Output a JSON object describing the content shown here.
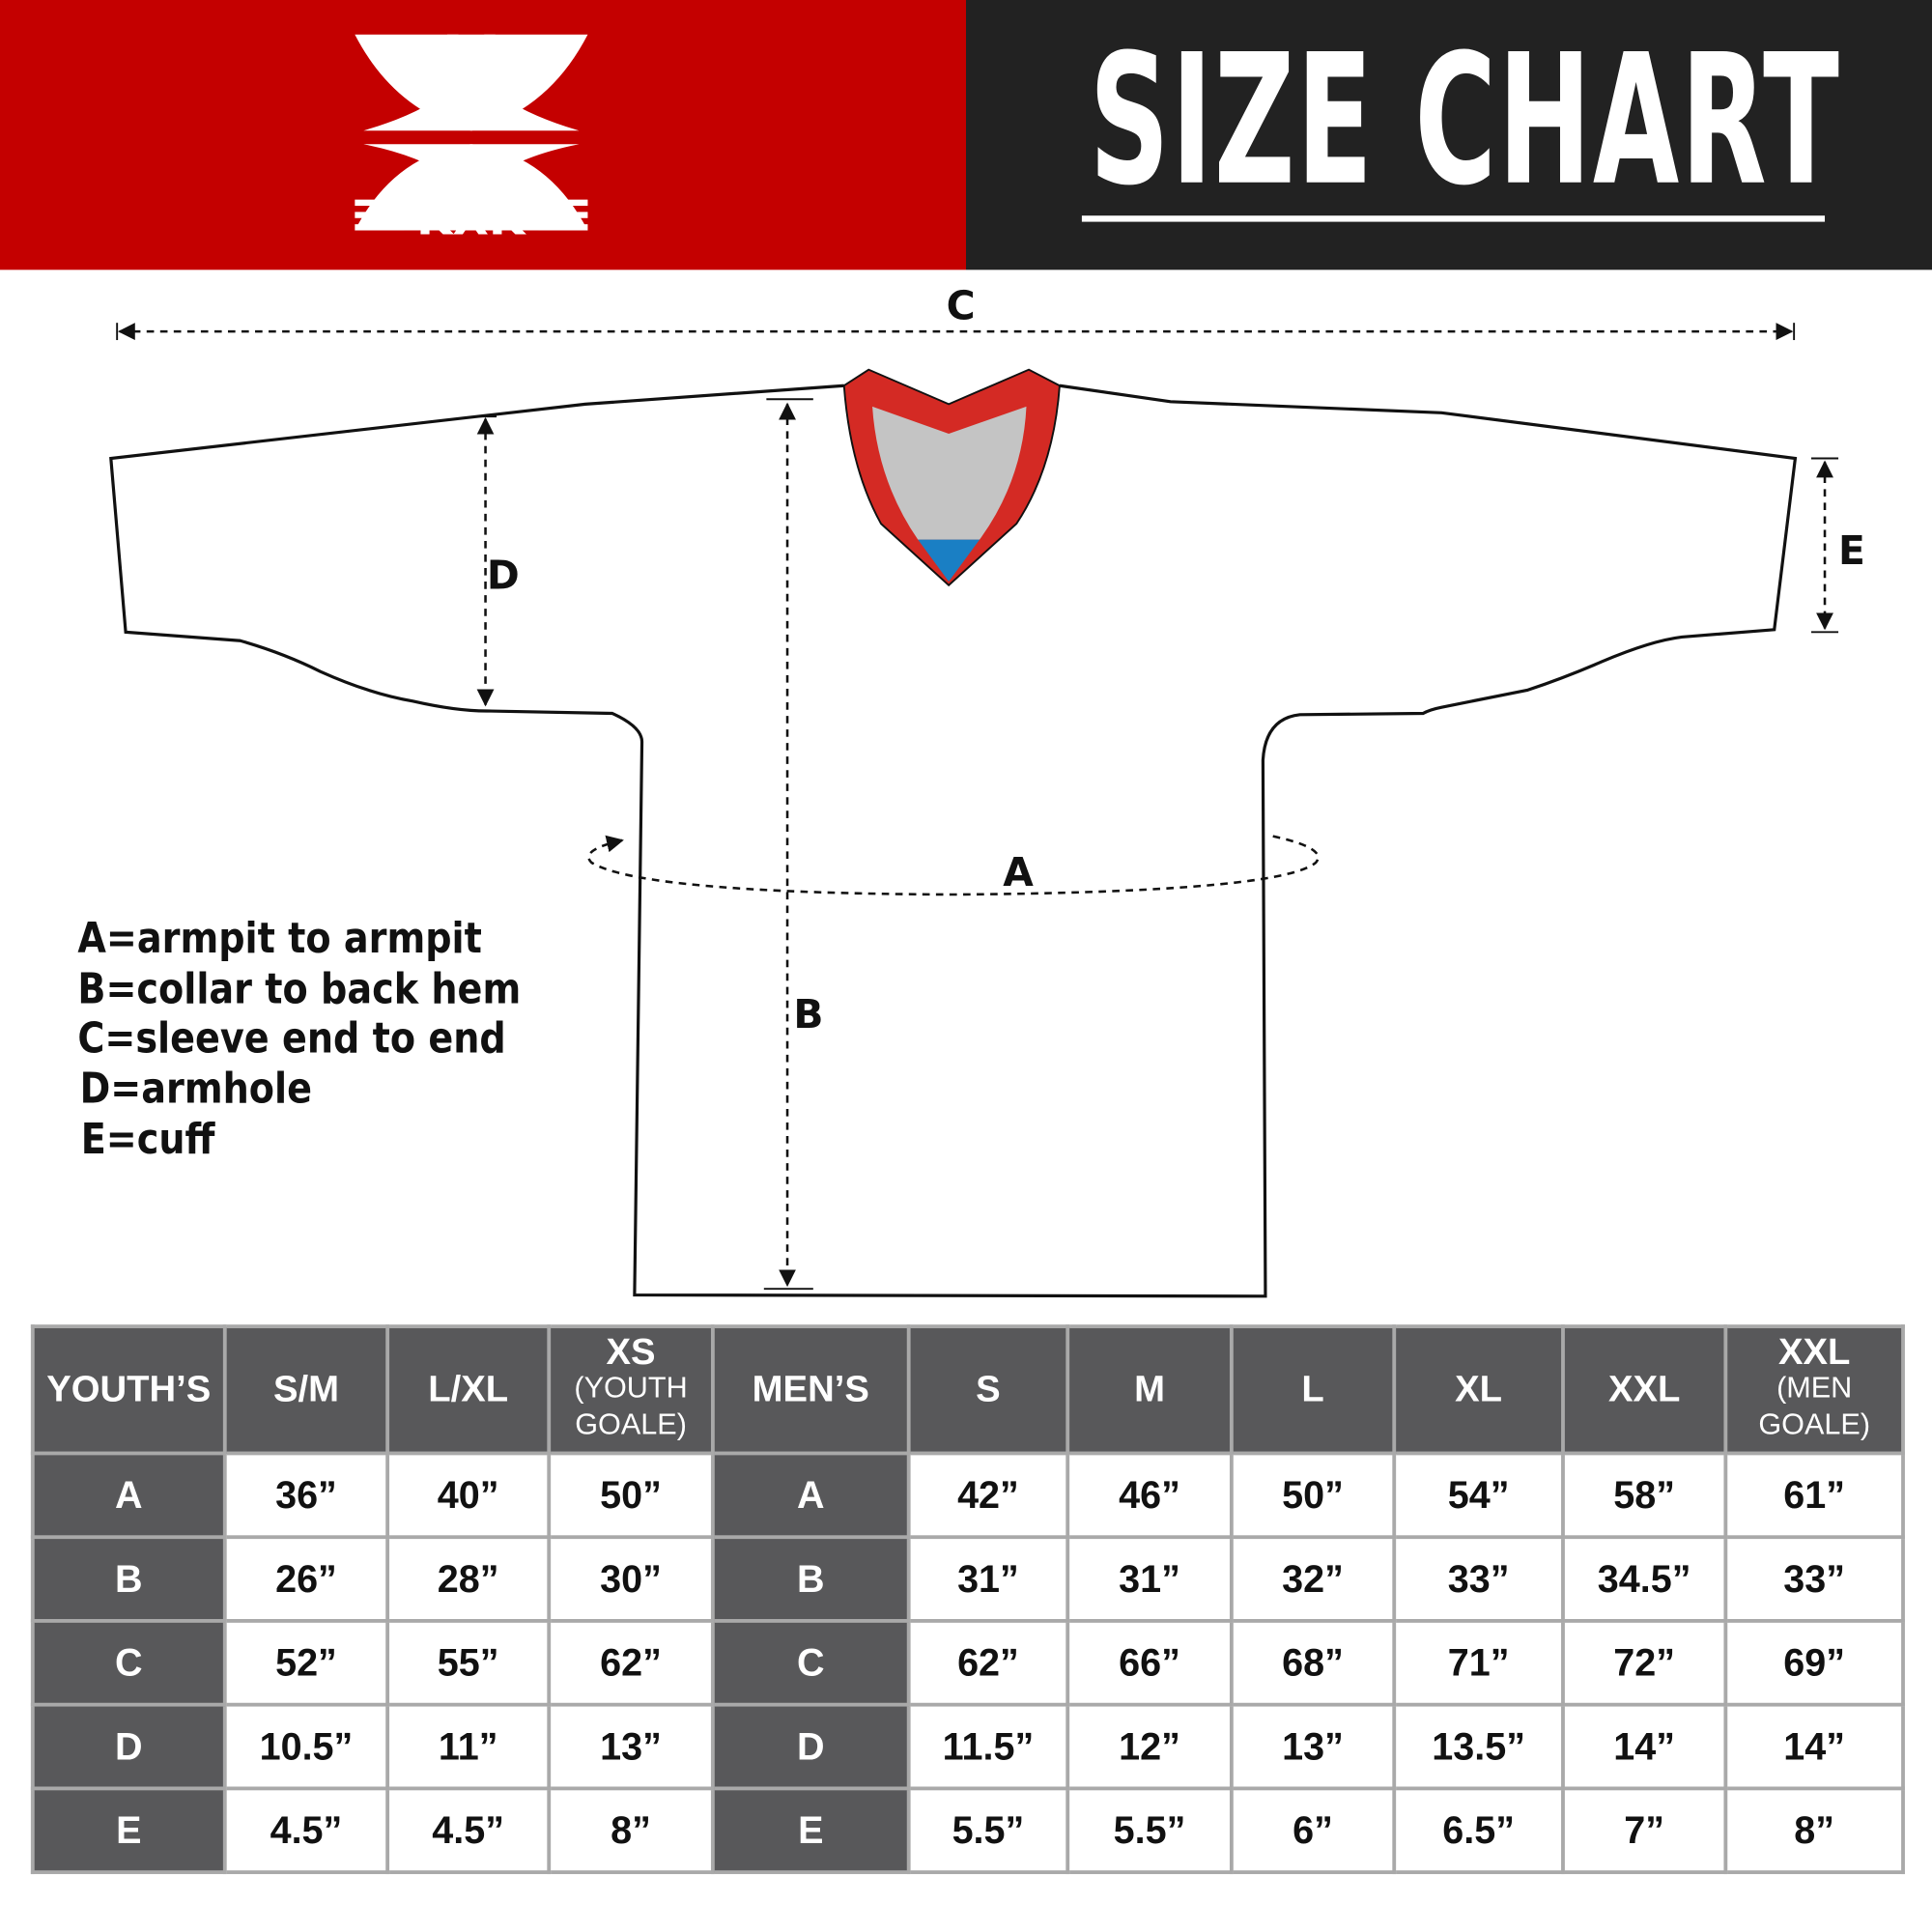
{
  "header": {
    "title": "SIZE CHART",
    "logo_text": "KXK",
    "brand_color": "#c40000",
    "dark_color": "#222222"
  },
  "diagram": {
    "labels": {
      "A": "A",
      "B": "B",
      "C": "C",
      "D": "D",
      "E": "E"
    },
    "collar_colors": {
      "trim": "#d42a24",
      "inner": "#c4c4c4",
      "tag": "#1a7fc4"
    }
  },
  "legend": [
    "A=armpit to armpit",
    "B=collar to back hem",
    "C=sleeve end to end",
    "D=armhole",
    "E=cuff"
  ],
  "table": {
    "youth": {
      "label": "YOUTH’S",
      "columns": [
        {
          "size": "S/M",
          "note": ""
        },
        {
          "size": "L/XL",
          "note": ""
        },
        {
          "size": "XS",
          "note": "(YOUTH GOALE)"
        }
      ]
    },
    "men": {
      "label": "MEN’S",
      "columns": [
        {
          "size": "S",
          "note": ""
        },
        {
          "size": "M",
          "note": ""
        },
        {
          "size": "L",
          "note": ""
        },
        {
          "size": "XL",
          "note": ""
        },
        {
          "size": "XXL",
          "note": ""
        },
        {
          "size": "XXL",
          "note": "(MEN GOALE)"
        }
      ]
    },
    "rows": [
      {
        "label": "A",
        "youth": [
          "36”",
          "40”",
          "50”"
        ],
        "men": [
          "42”",
          "46”",
          "50”",
          "54”",
          "58”",
          "61”"
        ]
      },
      {
        "label": "B",
        "youth": [
          "26”",
          "28”",
          "30”"
        ],
        "men": [
          "31”",
          "31”",
          "32”",
          "33”",
          "34.5”",
          "33”"
        ]
      },
      {
        "label": "C",
        "youth": [
          "52”",
          "55”",
          "62”"
        ],
        "men": [
          "62”",
          "66”",
          "68”",
          "71”",
          "72”",
          "69”"
        ]
      },
      {
        "label": "D",
        "youth": [
          "10.5”",
          "11”",
          "13”"
        ],
        "men": [
          "11.5”",
          "12”",
          "13”",
          "13.5”",
          "14”",
          "14”"
        ]
      },
      {
        "label": "E",
        "youth": [
          "4.5”",
          "4.5”",
          "8”"
        ],
        "men": [
          "5.5”",
          "5.5”",
          "6”",
          "6.5”",
          "7”",
          "8”"
        ]
      }
    ]
  }
}
